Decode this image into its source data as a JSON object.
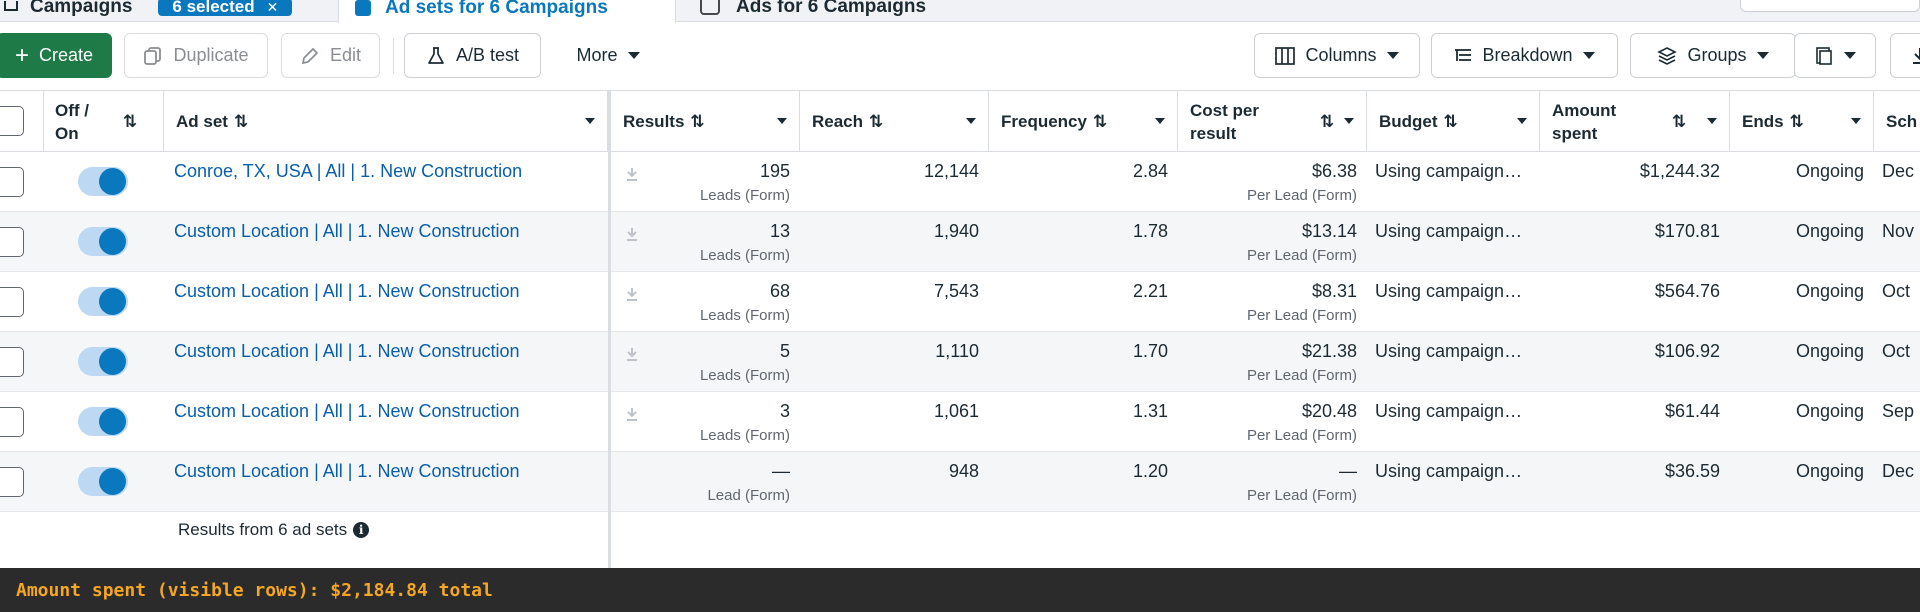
{
  "tabs": {
    "campaigns": "Campaigns",
    "selected_badge": "6 selected",
    "ad_sets": "Ad sets for 6 Campaigns",
    "ads": "Ads for 6 Campaigns"
  },
  "toolbar": {
    "create": "Create",
    "duplicate": "Duplicate",
    "edit": "Edit",
    "ab_test": "A/B test",
    "more": "More",
    "columns": "Columns",
    "breakdown": "Breakdown",
    "groups": "Groups"
  },
  "columns": {
    "off_on": "Off / On",
    "ad_set": "Ad set",
    "results": "Results",
    "reach": "Reach",
    "frequency": "Frequency",
    "cost_per_result": "Cost per result",
    "budget": "Budget",
    "amount_spent": "Amount spent",
    "ends": "Ends",
    "schedule": "Sch"
  },
  "rows": [
    {
      "name": "Conroe, TX, USA | All | 1. New Construction",
      "results": "195",
      "results_type": "Leads (Form)",
      "reach": "12,144",
      "frequency": "2.84",
      "cost": "$6.38",
      "cost_type": "Per Lead (Form)",
      "budget": "Using campaign…",
      "spent": "$1,244.32",
      "ends": "Ongoing",
      "schedule": "Dec"
    },
    {
      "name": "Custom Location | All | 1. New Construction",
      "results": "13",
      "results_type": "Leads (Form)",
      "reach": "1,940",
      "frequency": "1.78",
      "cost": "$13.14",
      "cost_type": "Per Lead (Form)",
      "budget": "Using campaign…",
      "spent": "$170.81",
      "ends": "Ongoing",
      "schedule": "Nov"
    },
    {
      "name": "Custom Location | All | 1. New Construction",
      "results": "68",
      "results_type": "Leads (Form)",
      "reach": "7,543",
      "frequency": "2.21",
      "cost": "$8.31",
      "cost_type": "Per Lead (Form)",
      "budget": "Using campaign…",
      "spent": "$564.76",
      "ends": "Ongoing",
      "schedule": "Oct"
    },
    {
      "name": "Custom Location | All | 1. New Construction",
      "results": "5",
      "results_type": "Leads (Form)",
      "reach": "1,110",
      "frequency": "1.70",
      "cost": "$21.38",
      "cost_type": "Per Lead (Form)",
      "budget": "Using campaign…",
      "spent": "$106.92",
      "ends": "Ongoing",
      "schedule": "Oct"
    },
    {
      "name": "Custom Location | All | 1. New Construction",
      "results": "3",
      "results_type": "Leads (Form)",
      "reach": "1,061",
      "frequency": "1.31",
      "cost": "$20.48",
      "cost_type": "Per Lead (Form)",
      "budget": "Using campaign…",
      "spent": "$61.44",
      "ends": "Ongoing",
      "schedule": "Sep"
    },
    {
      "name": "Custom Location | All | 1. New Construction",
      "results": "—",
      "results_type": "Lead (Form)",
      "reach": "948",
      "frequency": "1.20",
      "cost": "—",
      "cost_type": "Per Lead (Form)",
      "budget": "Using campaign…",
      "spent": "$36.59",
      "ends": "Ongoing",
      "schedule": "Dec"
    }
  ],
  "footer": {
    "results_from": "Results from 6 ad sets"
  },
  "status_bar": {
    "text": "Amount spent (visible rows): $2,184.84 total"
  },
  "colors": {
    "primary_button": "#1e7a47",
    "link": "#0a5eaa",
    "toggle_on": "#0a78be",
    "status_text": "#f5a623"
  },
  "icons": [
    "plus-icon",
    "duplicate-icon",
    "pencil-icon",
    "flask-icon",
    "columns-icon",
    "breakdown-icon",
    "layers-icon",
    "report-icon",
    "download-icon",
    "info-icon",
    "chevron-down-icon"
  ]
}
